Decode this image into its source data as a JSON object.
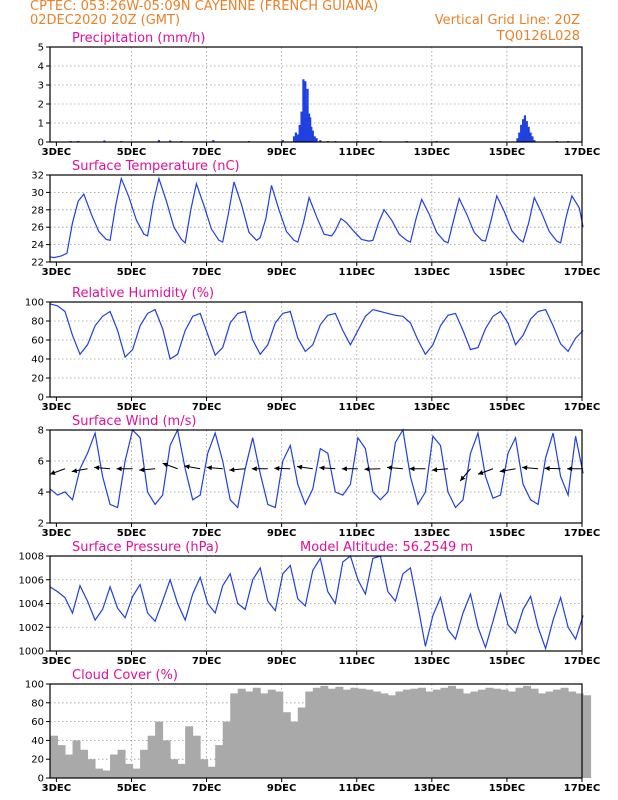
{
  "header": {
    "line1": "CPTEC:   053:26W-05:09N   CAYENNE (FRENCH GUIANA)",
    "line2_left": "02DEC2020 20Z (GMT)",
    "line2_right": "Vertical Grid Line: 20Z",
    "line3_right": "TQ0126L028"
  },
  "x_axis": {
    "start": "02DEC2020 20Z",
    "end": "17DEC2020 00Z",
    "tick_labels": [
      "3DEC",
      "5DEC",
      "7DEC",
      "9DEC",
      "11DEC",
      "13DEC",
      "15DEC",
      "17DEC"
    ]
  },
  "chart_data": [
    {
      "type": "bar",
      "title": "Precipitation (mm/h)",
      "ylim": [
        0,
        5
      ],
      "yticks": [
        0,
        1,
        2,
        3,
        4,
        5
      ],
      "color": "#2040e0",
      "series": [
        {
          "t": [
            0.55,
            0.75,
            1.45,
            1.9,
            2.9,
            3.2,
            3.5,
            4.35,
            5.3,
            6.2,
            6.5,
            6.55,
            6.6,
            6.65,
            6.7,
            6.75,
            6.78,
            6.8,
            6.83,
            6.86,
            6.9,
            6.93,
            6.96,
            7.0,
            7.05,
            7.1,
            7.2,
            7.4,
            7.6,
            8.2,
            8.8,
            9.5,
            10.3,
            12.45,
            12.5,
            12.55,
            12.6,
            12.65,
            12.7,
            12.75,
            12.8,
            12.85,
            12.9,
            13.5,
            13.8
          ],
          "v": [
            0.05,
            0.05,
            0.08,
            0.05,
            0.1,
            0.08,
            0.05,
            0.1,
            0.05,
            0.1,
            0.3,
            0.5,
            0.4,
            0.9,
            1.6,
            3.3,
            2.4,
            3.2,
            1.9,
            2.8,
            1.5,
            1.3,
            0.8,
            0.6,
            0.3,
            0.2,
            0.1,
            0.05,
            0.05,
            0.05,
            0.05,
            0.05,
            0.05,
            0.2,
            0.5,
            0.9,
            1.2,
            1.4,
            1.1,
            0.8,
            0.5,
            0.3,
            0.1,
            0.05,
            0.05
          ]
        }
      ]
    },
    {
      "type": "line",
      "title": "Surface Temperature (nC)",
      "ylim": [
        22,
        32
      ],
      "yticks": [
        22,
        24,
        26,
        28,
        30,
        32
      ],
      "color": "#2040e0",
      "series": [
        {
          "t": [
            0,
            0.1,
            0.2,
            0.3,
            0.45,
            0.6,
            0.75,
            0.9,
            1.1,
            1.3,
            1.5,
            1.6,
            1.75,
            1.9,
            2.1,
            2.3,
            2.5,
            2.6,
            2.75,
            2.9,
            3.1,
            3.3,
            3.5,
            3.6,
            3.75,
            3.9,
            4.1,
            4.3,
            4.5,
            4.6,
            4.75,
            4.9,
            5.1,
            5.3,
            5.5,
            5.6,
            5.75,
            5.9,
            6.1,
            6.3,
            6.5,
            6.6,
            6.75,
            6.9,
            7.1,
            7.3,
            7.5,
            7.6,
            7.75,
            7.9,
            8.1,
            8.3,
            8.5,
            8.6,
            8.75,
            8.9,
            9.1,
            9.3,
            9.5,
            9.6,
            9.75,
            9.9,
            10.1,
            10.3,
            10.5,
            10.6,
            10.75,
            10.9,
            11.1,
            11.3,
            11.5,
            11.6,
            11.75,
            11.9,
            12.1,
            12.3,
            12.5,
            12.6,
            12.75,
            12.9,
            13.1,
            13.3,
            13.5,
            13.6,
            13.75,
            13.9,
            14.1,
            14.2
          ],
          "v": [
            22.6,
            22.5,
            22.6,
            22.7,
            23.0,
            26.5,
            29.0,
            29.8,
            27.5,
            25.5,
            24.6,
            24.5,
            28.5,
            31.6,
            29.5,
            26.8,
            25.2,
            25.0,
            28.8,
            31.6,
            29.0,
            26.0,
            24.6,
            24.2,
            28.0,
            31.0,
            28.5,
            25.8,
            24.5,
            24.3,
            27.5,
            31.2,
            28.6,
            25.4,
            24.5,
            24.8,
            27.0,
            30.8,
            28.0,
            25.5,
            24.5,
            24.3,
            26.5,
            29.4,
            27.2,
            25.2,
            25.0,
            25.6,
            27.0,
            26.5,
            25.5,
            24.6,
            24.4,
            24.5,
            26.5,
            28.0,
            26.8,
            25.2,
            24.5,
            24.3,
            27.0,
            29.2,
            27.5,
            25.4,
            24.4,
            24.2,
            26.8,
            29.3,
            27.5,
            25.4,
            24.5,
            24.4,
            26.8,
            29.6,
            27.8,
            25.6,
            24.6,
            24.3,
            26.5,
            29.4,
            27.6,
            25.5,
            24.4,
            24.2,
            27.2,
            29.6,
            28.2,
            26.0
          ]
        }
      ]
    },
    {
      "type": "line",
      "title": "Relative Humidity (%)",
      "ylim": [
        0,
        100
      ],
      "yticks": [
        0,
        20,
        40,
        60,
        80,
        100
      ],
      "color": "#2040e0",
      "series": [
        {
          "t": [
            0,
            0.2,
            0.4,
            0.6,
            0.8,
            1.0,
            1.2,
            1.4,
            1.6,
            1.8,
            2.0,
            2.2,
            2.4,
            2.6,
            2.8,
            3.0,
            3.2,
            3.4,
            3.6,
            3.8,
            4.0,
            4.2,
            4.4,
            4.6,
            4.8,
            5.0,
            5.2,
            5.4,
            5.6,
            5.8,
            6.0,
            6.2,
            6.4,
            6.6,
            6.8,
            7.0,
            7.2,
            7.4,
            7.6,
            7.8,
            8.0,
            8.2,
            8.4,
            8.6,
            8.8,
            9.0,
            9.2,
            9.4,
            9.6,
            9.8,
            10.0,
            10.2,
            10.4,
            10.6,
            10.8,
            11.0,
            11.2,
            11.4,
            11.6,
            11.8,
            12.0,
            12.2,
            12.4,
            12.6,
            12.8,
            13.0,
            13.2,
            13.4,
            13.6,
            13.8,
            14.0,
            14.2
          ],
          "v": [
            98,
            96,
            90,
            65,
            45,
            55,
            75,
            85,
            90,
            70,
            42,
            50,
            75,
            88,
            92,
            72,
            40,
            45,
            70,
            85,
            88,
            66,
            44,
            52,
            78,
            88,
            90,
            60,
            45,
            55,
            78,
            88,
            90,
            62,
            48,
            55,
            76,
            86,
            88,
            70,
            55,
            70,
            85,
            92,
            90,
            88,
            86,
            85,
            78,
            60,
            45,
            55,
            75,
            86,
            88,
            70,
            50,
            52,
            72,
            85,
            90,
            78,
            55,
            65,
            82,
            90,
            92,
            75,
            56,
            48,
            62,
            70
          ]
        }
      ]
    },
    {
      "type": "line",
      "title": "Surface Wind (m/s)",
      "ylim": [
        2,
        8
      ],
      "yticks": [
        2,
        4,
        6,
        8
      ],
      "color": "#2040e0",
      "series": [
        {
          "t": [
            0,
            0.2,
            0.4,
            0.6,
            0.8,
            1.0,
            1.2,
            1.4,
            1.6,
            1.8,
            2.0,
            2.2,
            2.4,
            2.6,
            2.8,
            3.0,
            3.2,
            3.4,
            3.6,
            3.8,
            4.0,
            4.2,
            4.4,
            4.6,
            4.8,
            5.0,
            5.2,
            5.4,
            5.6,
            5.8,
            6.0,
            6.2,
            6.4,
            6.6,
            6.8,
            7.0,
            7.2,
            7.4,
            7.6,
            7.8,
            8.0,
            8.2,
            8.4,
            8.6,
            8.8,
            9.0,
            9.2,
            9.4,
            9.6,
            9.8,
            10.0,
            10.2,
            10.4,
            10.6,
            10.8,
            11.0,
            11.2,
            11.4,
            11.6,
            11.8,
            12.0,
            12.2,
            12.4,
            12.6,
            12.8,
            13.0,
            13.2,
            13.4,
            13.6,
            13.8,
            14.0,
            14.2
          ],
          "v": [
            4.2,
            3.8,
            4.0,
            3.5,
            5.5,
            6.5,
            7.8,
            5.0,
            3.2,
            3.0,
            6.0,
            8.0,
            7.5,
            4.0,
            3.2,
            3.8,
            7.0,
            8.0,
            5.5,
            3.5,
            3.8,
            6.5,
            7.8,
            6.0,
            3.5,
            3.0,
            5.5,
            7.5,
            5.2,
            3.2,
            3.0,
            6.0,
            7.0,
            4.5,
            3.2,
            4.2,
            6.8,
            6.5,
            4.0,
            3.8,
            4.5,
            7.5,
            6.8,
            4.0,
            3.5,
            4.0,
            7.2,
            8.0,
            5.0,
            3.2,
            4.0,
            7.6,
            7.0,
            4.0,
            3.0,
            3.5,
            6.5,
            7.8,
            5.0,
            3.6,
            3.8,
            6.5,
            7.5,
            4.5,
            3.5,
            3.2,
            6.2,
            7.8,
            5.0,
            3.8,
            7.6,
            5.2
          ]
        }
      ],
      "arrows": {
        "color": "#000000",
        "t": [
          0.4,
          1.0,
          1.6,
          2.2,
          2.8,
          3.4,
          4.0,
          4.6,
          5.2,
          5.8,
          6.4,
          7.0,
          7.6,
          8.2,
          8.8,
          9.4,
          10.0,
          10.6,
          11.2,
          11.8,
          12.4,
          13.0,
          13.6,
          14.2
        ],
        "dir": [
          200,
          190,
          175,
          180,
          185,
          160,
          170,
          175,
          185,
          180,
          178,
          172,
          176,
          180,
          182,
          175,
          180,
          185,
          230,
          200,
          190,
          175,
          178,
          180
        ]
      }
    },
    {
      "type": "line",
      "title": "Surface Pressure (hPa)",
      "annotation": "Model Altitude: 56.2549  m",
      "ylim": [
        1000,
        1008
      ],
      "yticks": [
        1000,
        1002,
        1004,
        1006,
        1008
      ],
      "color": "#2040e0",
      "series": [
        {
          "t": [
            0,
            0.2,
            0.4,
            0.6,
            0.8,
            1.0,
            1.2,
            1.4,
            1.6,
            1.8,
            2.0,
            2.2,
            2.4,
            2.6,
            2.8,
            3.0,
            3.2,
            3.4,
            3.6,
            3.8,
            4.0,
            4.2,
            4.4,
            4.6,
            4.8,
            5.0,
            5.2,
            5.4,
            5.6,
            5.8,
            6.0,
            6.2,
            6.4,
            6.6,
            6.8,
            7.0,
            7.2,
            7.4,
            7.6,
            7.8,
            8.0,
            8.2,
            8.4,
            8.6,
            8.8,
            9.0,
            9.2,
            9.4,
            9.6,
            9.8,
            10.0,
            10.2,
            10.4,
            10.6,
            10.8,
            11.0,
            11.2,
            11.4,
            11.6,
            11.8,
            12.0,
            12.2,
            12.4,
            12.6,
            12.8,
            13.0,
            13.2,
            13.4,
            13.6,
            13.8,
            14.0,
            14.2
          ],
          "v": [
            1005.4,
            1005.0,
            1004.5,
            1003.2,
            1005.5,
            1004.2,
            1002.6,
            1003.5,
            1005.4,
            1003.6,
            1002.8,
            1004.6,
            1005.6,
            1003.2,
            1002.5,
            1004.2,
            1006.0,
            1004.0,
            1002.6,
            1004.8,
            1006.2,
            1004.0,
            1003.2,
            1005.5,
            1006.5,
            1004.0,
            1003.5,
            1006.0,
            1007.0,
            1004.2,
            1003.4,
            1006.5,
            1007.2,
            1004.4,
            1003.8,
            1006.8,
            1007.8,
            1005.0,
            1004.0,
            1007.5,
            1008.0,
            1006.0,
            1004.8,
            1007.8,
            1008.0,
            1005.0,
            1004.2,
            1006.5,
            1007.0,
            1003.8,
            1000.4,
            1003.0,
            1004.5,
            1001.8,
            1001.0,
            1003.2,
            1004.8,
            1002.0,
            1000.3,
            1002.5,
            1004.8,
            1002.2,
            1001.5,
            1003.5,
            1004.6,
            1002.0,
            1000.2,
            1002.6,
            1004.5,
            1002.0,
            1001.0,
            1003.0
          ]
        }
      ]
    },
    {
      "type": "area",
      "title": "Cloud Cover (%)",
      "ylim": [
        0,
        100
      ],
      "yticks": [
        0,
        20,
        40,
        60,
        80,
        100
      ],
      "color": "#a9a9a9",
      "series": [
        {
          "t": [
            0,
            0.2,
            0.4,
            0.6,
            0.8,
            1.0,
            1.2,
            1.4,
            1.6,
            1.8,
            2.0,
            2.2,
            2.4,
            2.6,
            2.8,
            3.0,
            3.2,
            3.4,
            3.6,
            3.8,
            4.0,
            4.2,
            4.4,
            4.6,
            4.8,
            5.0,
            5.2,
            5.4,
            5.6,
            5.8,
            6.0,
            6.2,
            6.4,
            6.6,
            6.8,
            7.0,
            7.2,
            7.4,
            7.6,
            7.8,
            8.0,
            8.2,
            8.4,
            8.6,
            8.8,
            9.0,
            9.2,
            9.4,
            9.6,
            9.8,
            10.0,
            10.2,
            10.4,
            10.6,
            10.8,
            11.0,
            11.2,
            11.4,
            11.6,
            11.8,
            12.0,
            12.2,
            12.4,
            12.6,
            12.8,
            13.0,
            13.2,
            13.4,
            13.6,
            13.8,
            14.0,
            14.2
          ],
          "v": [
            45,
            35,
            25,
            40,
            30,
            20,
            10,
            8,
            25,
            30,
            15,
            10,
            30,
            45,
            60,
            40,
            20,
            15,
            55,
            45,
            20,
            12,
            35,
            60,
            90,
            95,
            92,
            96,
            90,
            94,
            92,
            70,
            60,
            75,
            92,
            96,
            98,
            95,
            97,
            94,
            96,
            95,
            94,
            92,
            90,
            88,
            92,
            94,
            95,
            96,
            92,
            94,
            96,
            98,
            95,
            90,
            92,
            94,
            96,
            95,
            94,
            92,
            96,
            98,
            95,
            90,
            92,
            94,
            96,
            92,
            90,
            88
          ]
        }
      ]
    }
  ]
}
